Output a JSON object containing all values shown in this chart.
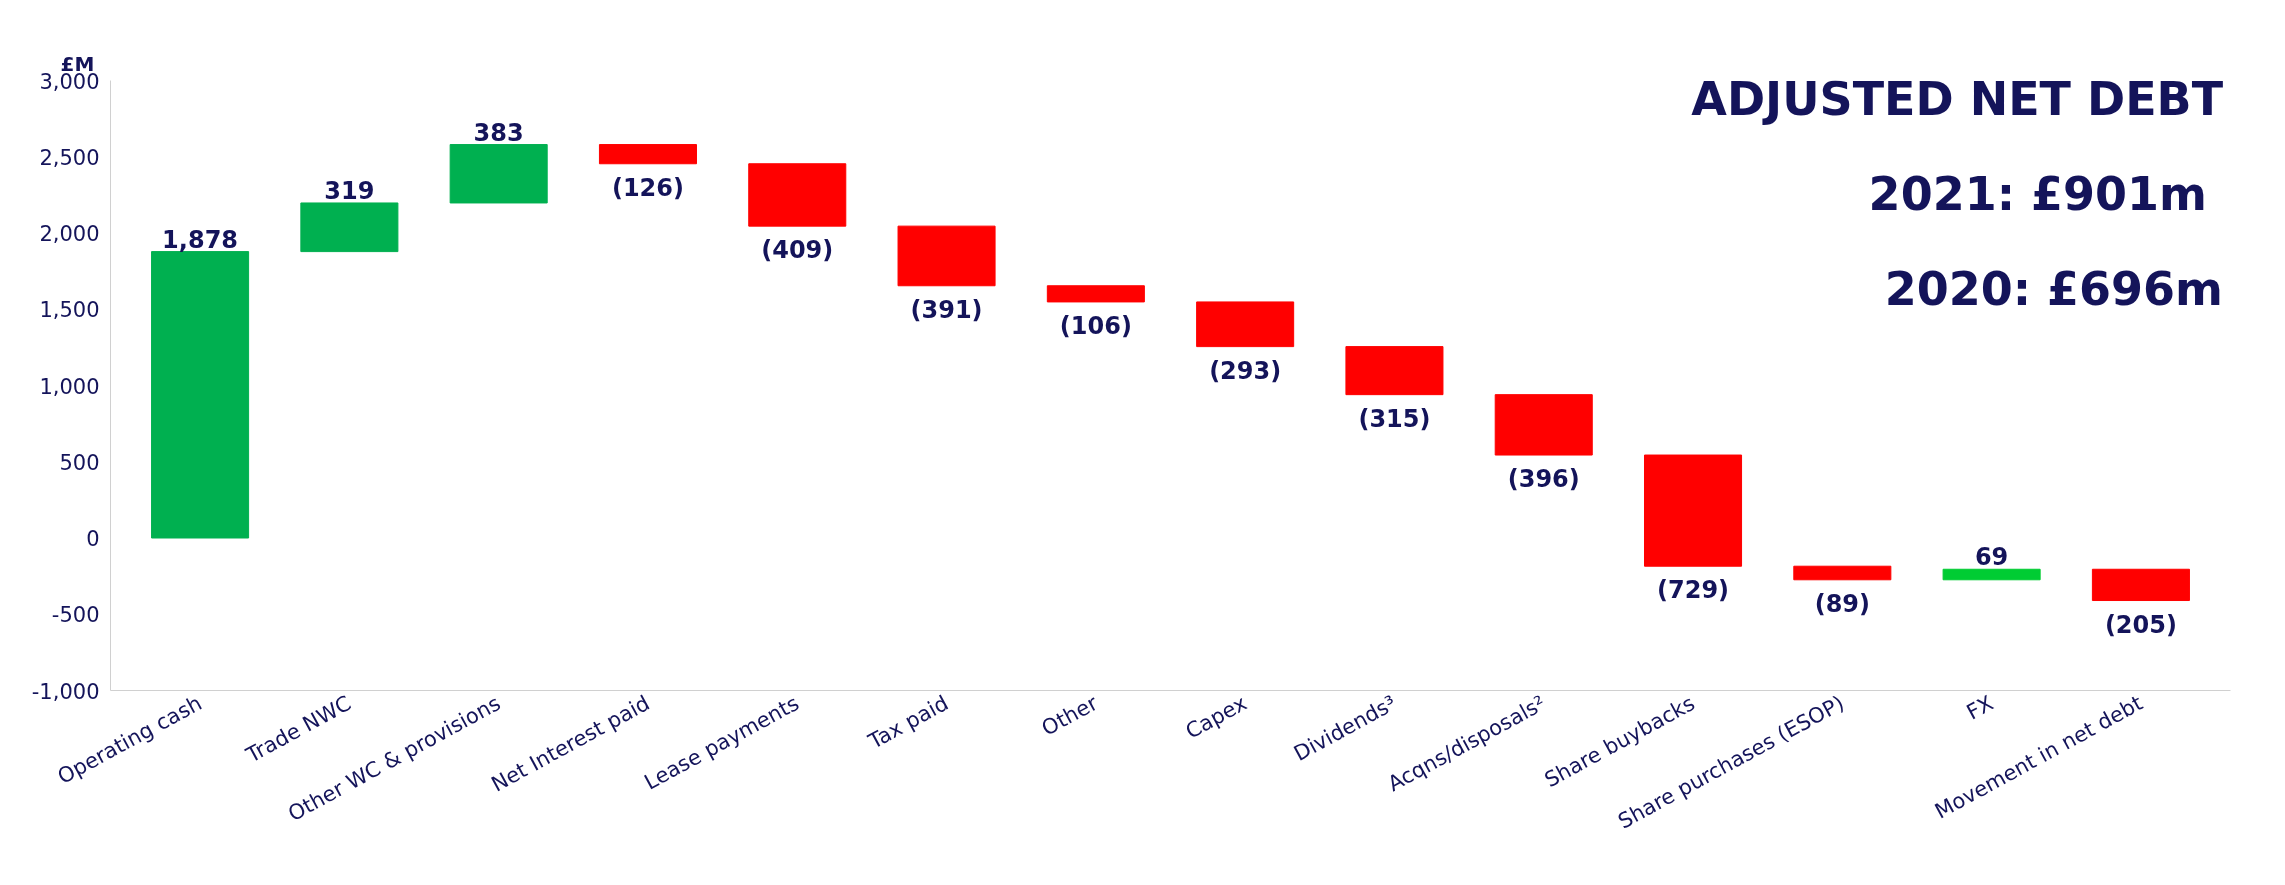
{
  "chart_data": {
    "type": "bar",
    "title": "ADJUSTED NET DEBT",
    "ylabel": "£M",
    "categories": [
      "Operating cash",
      "Trade NWC",
      "Other WC & provisions",
      "Net Interest paid",
      "Lease payments",
      "Tax paid",
      "Other",
      "Capex",
      "Dividends³",
      "Acqns/disposals²",
      "Share buybacks",
      "Share purchases (ESOP)",
      "FX",
      "Movement in net debt"
    ],
    "values": [
      1878,
      319,
      383,
      -126,
      -409,
      -391,
      -106,
      -293,
      -315,
      -396,
      -729,
      -89,
      69,
      -205
    ],
    "base": [
      0,
      1878,
      2197,
      2580,
      2454,
      2045,
      1654,
      1548,
      1255,
      940,
      544,
      -185,
      -274,
      -205
    ],
    "colors": [
      "#00b050",
      "#00b050",
      "#00b050",
      "#ff0000",
      "#ff0000",
      "#ff0000",
      "#ff0000",
      "#ff0000",
      "#ff0000",
      "#ff0000",
      "#ff0000",
      "#ff0000",
      "#00cc33",
      "#ff0000"
    ],
    "value_labels": [
      "1,878",
      "319",
      "383",
      "(126)",
      "(409)",
      "(391)",
      "(106)",
      "(293)",
      "(315)",
      "(396)",
      "(729)",
      "(89)",
      "69",
      "(205)"
    ],
    "ylim": [
      -1000,
      3000
    ],
    "yticks": [
      {
        "value": -1000,
        "label": "-1,000"
      },
      -500,
      0,
      500,
      {
        "value": 1000,
        "label": "1,000"
      },
      {
        "value": 1500,
        "label": "1,500"
      },
      {
        "value": 2000,
        "label": "2,000"
      },
      {
        "value": 2500,
        "label": "2,500"
      },
      {
        "value": 3000,
        "label": "3,000"
      }
    ],
    "annotations": [
      "2021:  £901m",
      "2020: £696m"
    ],
    "grid": false
  }
}
